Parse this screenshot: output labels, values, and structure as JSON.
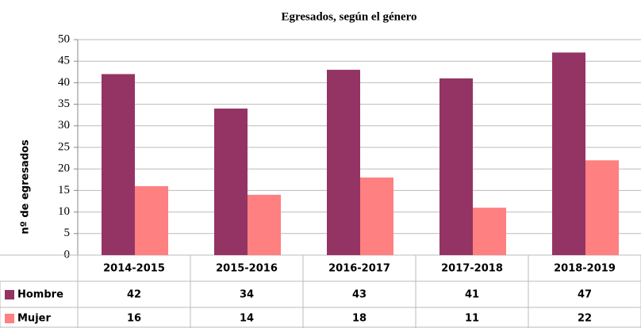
{
  "chart_data": {
    "type": "bar",
    "title": "Egresados, según el género",
    "y_label": "nº de egresados",
    "categories": [
      "2014-2015",
      "2015-2016",
      "2016-2017",
      "2017-2018",
      "2018-2019"
    ],
    "series": [
      {
        "name": "Hombre",
        "color": "#943464",
        "values": [
          42,
          34,
          43,
          41,
          47
        ]
      },
      {
        "name": "Mujer",
        "color": "#ff8080",
        "values": [
          16,
          14,
          18,
          11,
          22
        ]
      }
    ],
    "ylim": [
      0,
      50
    ],
    "yticks": [
      0,
      5,
      10,
      15,
      20,
      25,
      30,
      35,
      40,
      45,
      50
    ],
    "grid": true
  }
}
